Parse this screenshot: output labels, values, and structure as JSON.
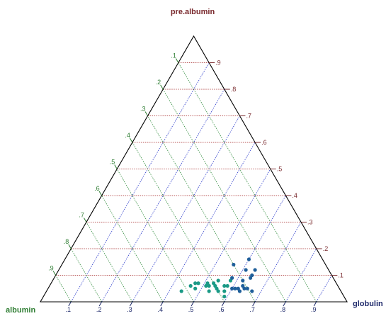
{
  "chart_data": {
    "type": "scatter",
    "subtype": "ternary",
    "title": "",
    "axis_labels": {
      "top": "pre.albumin",
      "left": "albumin",
      "right": "globulin"
    },
    "colors": {
      "top_axis": "#7a2a2e",
      "left_axis": "#2e7d32",
      "right_axis": "#1f2a6b",
      "grid_top": "#a01c1c",
      "grid_left": "#2e8b3a",
      "grid_right": "#2a3acb",
      "point_teal": "#1b9a86",
      "point_blue": "#1f5f9a"
    },
    "grid": true,
    "ticks": {
      "top": [
        ".1",
        ".2",
        ".3",
        ".4",
        ".5",
        ".6",
        ".7",
        ".8",
        ".9"
      ],
      "left": [
        ".1",
        ".2",
        ".3",
        ".4",
        ".5",
        ".6",
        ".7",
        ".8",
        ".9"
      ],
      "right": [
        ".1",
        ".2",
        ".3",
        ".4",
        ".5",
        ".6",
        ".7",
        ".8",
        ".9"
      ]
    },
    "x_label": "globulin",
    "y_label": "pre.albumin",
    "points": [
      {
        "albumin": 0.52,
        "globulin": 0.44,
        "pre_albumin": 0.04,
        "color": "point_teal"
      },
      {
        "albumin": 0.48,
        "globulin": 0.46,
        "pre_albumin": 0.06,
        "color": "point_teal"
      },
      {
        "albumin": 0.47,
        "globulin": 0.48,
        "pre_albumin": 0.05,
        "color": "point_teal"
      },
      {
        "albumin": 0.46,
        "globulin": 0.47,
        "pre_albumin": 0.07,
        "color": "point_teal"
      },
      {
        "albumin": 0.45,
        "globulin": 0.48,
        "pre_albumin": 0.07,
        "color": "point_teal"
      },
      {
        "albumin": 0.42,
        "globulin": 0.51,
        "pre_albumin": 0.07,
        "color": "point_teal"
      },
      {
        "albumin": 0.43,
        "globulin": 0.51,
        "pre_albumin": 0.06,
        "color": "point_teal"
      },
      {
        "albumin": 0.43,
        "globulin": 0.53,
        "pre_albumin": 0.04,
        "color": "point_teal"
      },
      {
        "albumin": 0.42,
        "globulin": 0.52,
        "pre_albumin": 0.06,
        "color": "point_teal"
      },
      {
        "albumin": 0.4,
        "globulin": 0.53,
        "pre_albumin": 0.07,
        "color": "point_teal"
      },
      {
        "albumin": 0.4,
        "globulin": 0.55,
        "pre_albumin": 0.05,
        "color": "point_teal"
      },
      {
        "albumin": 0.4,
        "globulin": 0.54,
        "pre_albumin": 0.06,
        "color": "point_teal"
      },
      {
        "albumin": 0.38,
        "globulin": 0.54,
        "pre_albumin": 0.08,
        "color": "point_teal"
      },
      {
        "albumin": 0.4,
        "globulin": 0.56,
        "pre_albumin": 0.04,
        "color": "point_teal"
      },
      {
        "albumin": 0.38,
        "globulin": 0.58,
        "pre_albumin": 0.04,
        "color": "point_teal"
      },
      {
        "albumin": 0.37,
        "globulin": 0.57,
        "pre_albumin": 0.06,
        "color": "point_teal"
      },
      {
        "albumin": 0.39,
        "globulin": 0.59,
        "pre_albumin": 0.02,
        "color": "point_teal"
      },
      {
        "albumin": 0.36,
        "globulin": 0.58,
        "pre_albumin": 0.06,
        "color": "point_teal"
      },
      {
        "albumin": 0.34,
        "globulin": 0.58,
        "pre_albumin": 0.08,
        "color": "point_teal"
      },
      {
        "albumin": 0.33,
        "globulin": 0.58,
        "pre_albumin": 0.09,
        "color": "point_blue"
      },
      {
        "albumin": 0.35,
        "globulin": 0.6,
        "pre_albumin": 0.05,
        "color": "point_blue"
      },
      {
        "albumin": 0.34,
        "globulin": 0.61,
        "pre_albumin": 0.05,
        "color": "point_blue"
      },
      {
        "albumin": 0.33,
        "globulin": 0.62,
        "pre_albumin": 0.05,
        "color": "point_blue"
      },
      {
        "albumin": 0.33,
        "globulin": 0.63,
        "pre_albumin": 0.04,
        "color": "point_blue"
      },
      {
        "albumin": 0.31,
        "globulin": 0.63,
        "pre_albumin": 0.06,
        "color": "point_blue"
      },
      {
        "albumin": 0.31,
        "globulin": 0.64,
        "pre_albumin": 0.05,
        "color": "point_blue"
      },
      {
        "albumin": 0.3,
        "globulin": 0.62,
        "pre_albumin": 0.08,
        "color": "point_blue"
      },
      {
        "albumin": 0.3,
        "globulin": 0.65,
        "pre_albumin": 0.05,
        "color": "point_blue"
      },
      {
        "albumin": 0.29,
        "globulin": 0.67,
        "pre_albumin": 0.04,
        "color": "point_blue"
      },
      {
        "albumin": 0.27,
        "globulin": 0.64,
        "pre_albumin": 0.09,
        "color": "point_blue"
      },
      {
        "albumin": 0.27,
        "globulin": 0.61,
        "pre_albumin": 0.12,
        "color": "point_blue"
      },
      {
        "albumin": 0.26,
        "globulin": 0.64,
        "pre_albumin": 0.1,
        "color": "point_blue"
      },
      {
        "albumin": 0.3,
        "globulin": 0.56,
        "pre_albumin": 0.14,
        "color": "point_blue"
      },
      {
        "albumin": 0.24,
        "globulin": 0.64,
        "pre_albumin": 0.12,
        "color": "point_blue"
      },
      {
        "albumin": 0.24,
        "globulin": 0.6,
        "pre_albumin": 0.16,
        "color": "point_blue"
      }
    ]
  }
}
